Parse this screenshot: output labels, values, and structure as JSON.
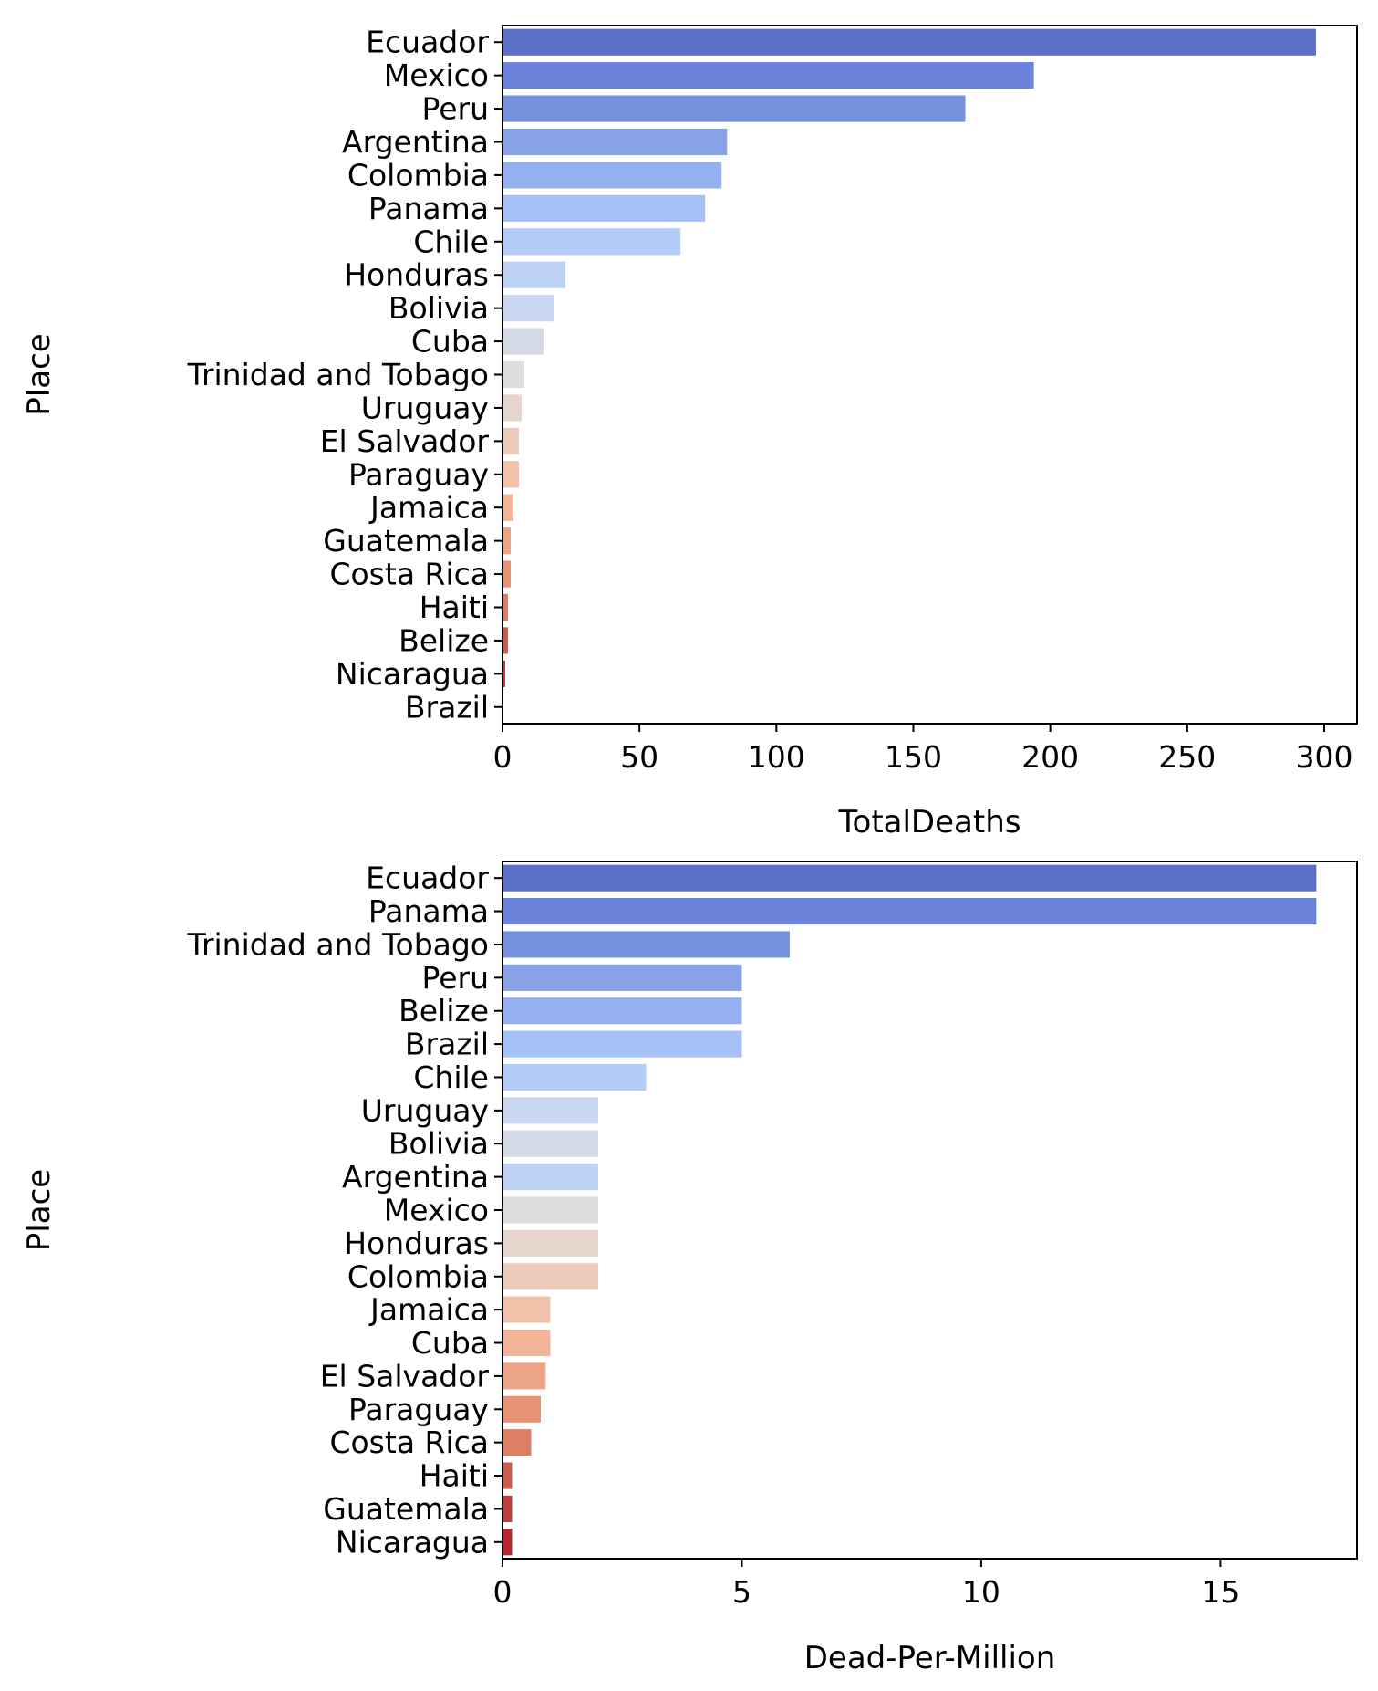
{
  "chart_data": [
    {
      "type": "bar",
      "orientation": "horizontal",
      "ylabel": "Place",
      "xlabel": "TotalDeaths",
      "xlim": [
        0,
        312
      ],
      "xticks": [
        0,
        50,
        100,
        150,
        200,
        250,
        300
      ],
      "grid": false,
      "categories": [
        "Ecuador",
        "Mexico",
        "Peru",
        "Argentina",
        "Colombia",
        "Panama",
        "Chile",
        "Honduras",
        "Bolivia",
        "Cuba",
        "Trinidad and Tobago",
        "Uruguay",
        "El Salvador",
        "Paraguay",
        "Jamaica",
        "Guatemala",
        "Costa Rica",
        "Haiti",
        "Belize",
        "Nicaragua",
        "Brazil"
      ],
      "values": [
        297,
        194,
        169,
        82,
        80,
        74,
        65,
        23,
        19,
        15,
        8,
        7,
        6,
        6,
        4,
        3,
        3,
        2,
        2,
        1,
        0
      ],
      "colors": [
        "#5b71c8",
        "#6a82d9",
        "#7692dd",
        "#87a2e6",
        "#95b0ee",
        "#a5c1f5",
        "#b2cbf7",
        "#bfd3f5",
        "#c9d7f0",
        "#d4dbe6",
        "#dddcdc",
        "#e6d5cc",
        "#edcbbb",
        "#f1c1a9",
        "#f1b499",
        "#eca687",
        "#e59275",
        "#dd7f64",
        "#cd5a4d",
        "#bf3e3c",
        "#b8292f"
      ]
    },
    {
      "type": "bar",
      "orientation": "horizontal",
      "ylabel": "Place",
      "xlabel": "Dead-Per-Million",
      "xlim": [
        0,
        17.85
      ],
      "xticks": [
        0,
        5,
        10,
        15
      ],
      "grid": false,
      "categories": [
        "Ecuador",
        "Panama",
        "Trinidad and Tobago",
        "Peru",
        "Belize",
        "Brazil",
        "Chile",
        "Uruguay",
        "Bolivia",
        "Argentina",
        "Mexico",
        "Honduras",
        "Colombia",
        "Jamaica",
        "Cuba",
        "El Salvador",
        "Paraguay",
        "Costa Rica",
        "Haiti",
        "Guatemala",
        "Nicaragua"
      ],
      "values": [
        17,
        17,
        6,
        5,
        5,
        5,
        3,
        2,
        2,
        2,
        2,
        2,
        2,
        1,
        1,
        0.9,
        0.8,
        0.6,
        0.2,
        0.2,
        0.2
      ],
      "colors": [
        "#5b71c8",
        "#6a82d9",
        "#7692dd",
        "#87a2e6",
        "#95b0ee",
        "#a5c1f5",
        "#b2cbf7",
        "#c9d7f0",
        "#d4dbe6",
        "#bfd3f5",
        "#dddcdc",
        "#e6d5cc",
        "#edcbbb",
        "#f1c1a9",
        "#f1b499",
        "#eca687",
        "#e59275",
        "#dd7f64",
        "#cd5a4d",
        "#bf3e3c",
        "#b8292f"
      ]
    }
  ]
}
